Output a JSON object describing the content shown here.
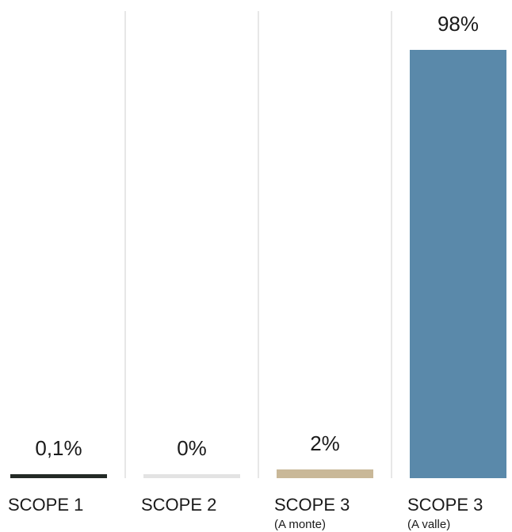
{
  "chart_data": {
    "type": "bar",
    "categories": [
      "SCOPE 1",
      "SCOPE 2",
      "SCOPE 3",
      "SCOPE 3"
    ],
    "category_sublabels": [
      "",
      "",
      "(A monte)",
      "(A valle)"
    ],
    "values": [
      0.1,
      0,
      2,
      98
    ],
    "value_labels": [
      "0,1%",
      "0%",
      "2%",
      "98%"
    ],
    "colors": [
      "#232a26",
      "#e3e3e3",
      "#c9b898",
      "#5a89aa"
    ],
    "ylim": [
      0,
      100
    ],
    "grid": false
  }
}
